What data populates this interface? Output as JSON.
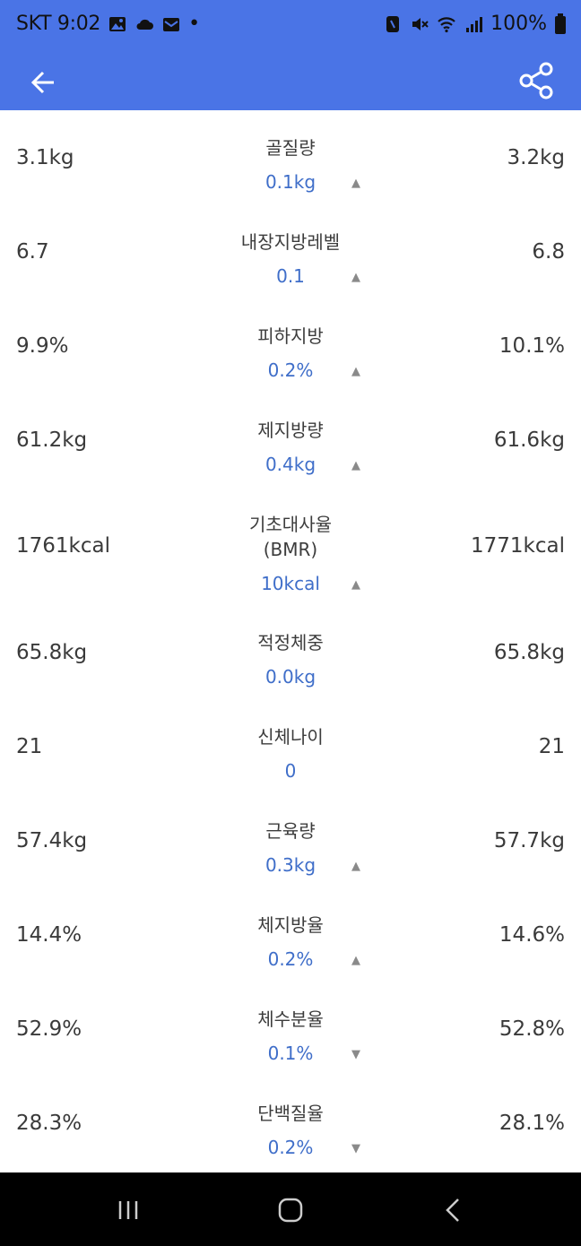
{
  "status_bar": {
    "carrier_time": "SKT 9:02",
    "dot": "•",
    "battery": "100%",
    "icons_left": [
      "image-icon",
      "cloud-icon",
      "mail-icon"
    ],
    "icons_right": [
      "nfc-icon",
      "mute-icon",
      "wifi-icon",
      "signal-icon",
      "battery-icon"
    ]
  },
  "app_bar": {
    "back_icon": "back-arrow-icon",
    "share_icon": "share-icon",
    "color": "#4a74e6"
  },
  "rows": [
    {
      "left": "3.1kg",
      "label": "골질량",
      "diff": "0.1kg",
      "trend": "up",
      "right": "3.2kg"
    },
    {
      "left": "6.7",
      "label": "내장지방레벨",
      "diff": "0.1",
      "trend": "up",
      "right": "6.8"
    },
    {
      "left": "9.9%",
      "label": "피하지방",
      "diff": "0.2%",
      "trend": "up",
      "right": "10.1%"
    },
    {
      "left": "61.2kg",
      "label": "제지방량",
      "diff": "0.4kg",
      "trend": "up",
      "right": "61.6kg"
    },
    {
      "left": "1761kcal",
      "label": "기초대사율",
      "label2": "(BMR)",
      "diff": "10kcal",
      "trend": "up",
      "right": "1771kcal"
    },
    {
      "left": "65.8kg",
      "label": "적정체중",
      "diff": "0.0kg",
      "trend": "none",
      "right": "65.8kg"
    },
    {
      "left": "21",
      "label": "신체나이",
      "diff": "0",
      "trend": "none",
      "right": "21"
    },
    {
      "left": "57.4kg",
      "label": "근육량",
      "diff": "0.3kg",
      "trend": "up",
      "right": "57.7kg"
    },
    {
      "left": "14.4%",
      "label": "체지방율",
      "diff": "0.2%",
      "trend": "up",
      "right": "14.6%"
    },
    {
      "left": "52.9%",
      "label": "체수분율",
      "diff": "0.1%",
      "trend": "down",
      "right": "52.8%"
    },
    {
      "left": "28.3%",
      "label": "단백질율",
      "diff": "0.2%",
      "trend": "down",
      "right": "28.1%"
    }
  ],
  "trend_glyphs": {
    "up": "▲",
    "down": "▼"
  },
  "nav_bar": {
    "recent_icon": "recent-apps-icon",
    "home_icon": "home-icon",
    "back_icon": "nav-back-icon"
  }
}
